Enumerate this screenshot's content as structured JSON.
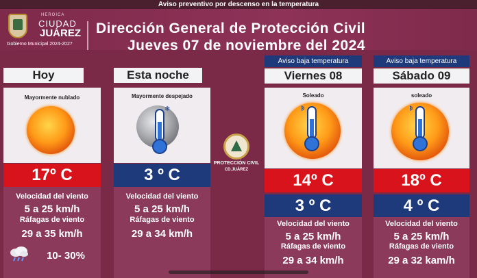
{
  "top_banner": "Aviso preventivo por descenso en la temperatura",
  "logo": {
    "heroica": "HEROICA",
    "ciudad": "CIUDAD",
    "juarez": "JUÁREZ",
    "gobierno": "Gobierno Municipal 2024-2027"
  },
  "header": {
    "title_line1": "Dirección General de Protección Civil",
    "title_line2": "Jueves 07 de noviembre del 2024"
  },
  "center_logo": {
    "line1": "PROTECCIÓN CIVIL",
    "line2": "CD.JUÁREZ"
  },
  "days": [
    {
      "tab": "Hoy",
      "condition": "Mayormente nublado",
      "icon": "sun-icon",
      "temp": "17º C",
      "wind_label": "Velocidad del viento",
      "wind_value": "5 a 25 km/h",
      "gust_label": "Ráfagas de viento",
      "gust_value": "29 a 35 km/h",
      "rain_value": "10- 30%"
    },
    {
      "tab": "Esta noche",
      "condition": "Mayormente despejado",
      "icon": "moon-thermometer-icon",
      "temp": "3 º C",
      "wind_label": "Velocidad del viento",
      "wind_value": "5 a 25 km/h",
      "gust_label": "Ráfagas de viento",
      "gust_value": "29 a 34 km/h"
    },
    {
      "aviso": "Aviso baja temperatura",
      "tab": "Viernes 08",
      "condition": "Soleado",
      "icon": "sun-thermometer-icon",
      "temp_high": "14º C",
      "temp_low": "3 º C",
      "wind_label": "Velocidad del viento",
      "wind_value": "5 a 25 km/h",
      "gust_label": "Ráfagas de viento",
      "gust_value": "29 a 34 km/h"
    },
    {
      "aviso": "Aviso baja temperatura",
      "tab": "Sábado 09",
      "condition": "soleado",
      "icon": "sun-thermometer-icon",
      "temp_high": "18º C",
      "temp_low": "4 º C",
      "wind_label": "Velocidad del viento",
      "wind_value": "5 a 25 km/h",
      "gust_label": "Ráfagas de viento",
      "gust_value": "29 a 32 kam/h"
    }
  ],
  "colors": {
    "background": "#7a2a47",
    "temp_red": "#d8131c",
    "temp_blue": "#1e3a7a",
    "info_panel": "#8c3a5c"
  }
}
